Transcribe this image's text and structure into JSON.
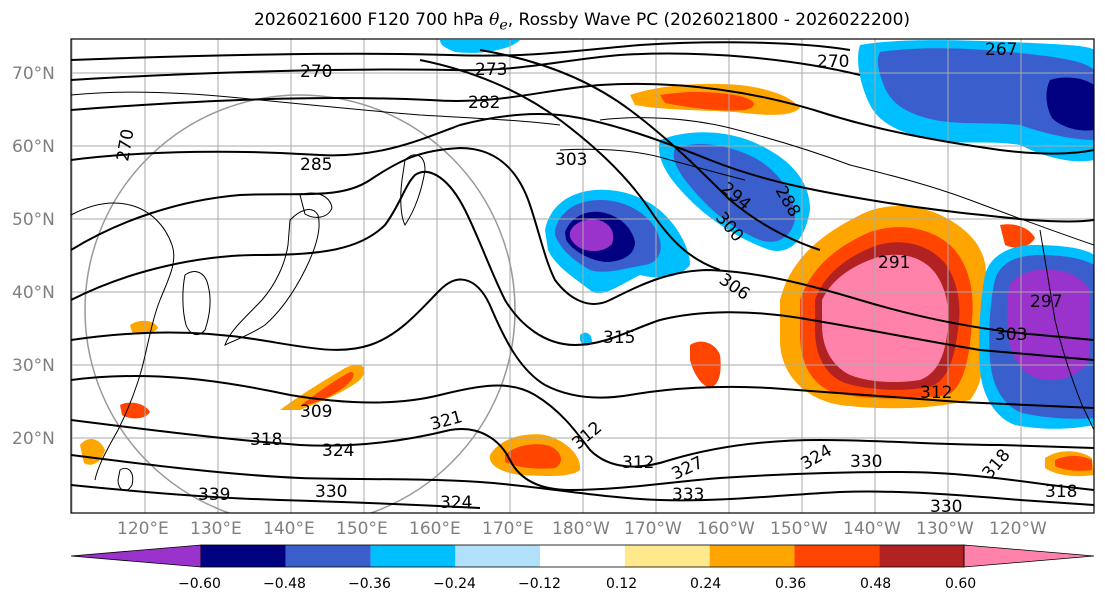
{
  "title": {
    "prefix": "2026021600 F120 700 hPa ",
    "symbol_main": "θ",
    "symbol_sub": "e",
    "suffix": ", Rossby Wave PC (2026021800 - 2026022200)"
  },
  "latitude_labels": [
    "70°N",
    "60°N",
    "50°N",
    "40°N",
    "30°N",
    "20°N"
  ],
  "longitude_labels": [
    "120°E",
    "130°E",
    "140°E",
    "150°E",
    "160°E",
    "170°E",
    "180°W",
    "170°W",
    "160°W",
    "150°W",
    "140°W",
    "130°W",
    "120°W"
  ],
  "contour_labels": [
    "270",
    "273",
    "282",
    "270",
    "267",
    "270",
    "285",
    "303",
    "294",
    "288",
    "300",
    "306",
    "291",
    "297",
    "303",
    "315",
    "312",
    "309",
    "321",
    "318",
    "324",
    "312",
    "312",
    "327",
    "324",
    "330",
    "333",
    "324",
    "330",
    "339",
    "318",
    "318",
    "330"
  ],
  "colorbar": {
    "tick_labels": [
      "−0.60",
      "−0.48",
      "−0.36",
      "−0.24",
      "−0.12",
      "0.12",
      "0.24",
      "0.36",
      "0.48",
      "0.60"
    ],
    "colors": [
      "#9933cc",
      "#000080",
      "#3a5fcd",
      "#00bfff",
      "#b0e0fa",
      "#ffffff",
      "#ffe98c",
      "#ffa500",
      "#ff4500",
      "#b22222",
      "#ff82ab"
    ]
  },
  "anomaly_colors": {
    "pos_low": "#ffe98c",
    "pos_mid": "#ffa500",
    "pos_high": "#ff4500",
    "pos_vhigh": "#b22222",
    "pos_max": "#ff82ab",
    "neg_low": "#b0e0fa",
    "neg_mid": "#00bfff",
    "neg_high": "#3a5fcd",
    "neg_vhigh": "#000080",
    "neg_max": "#9933cc"
  }
}
